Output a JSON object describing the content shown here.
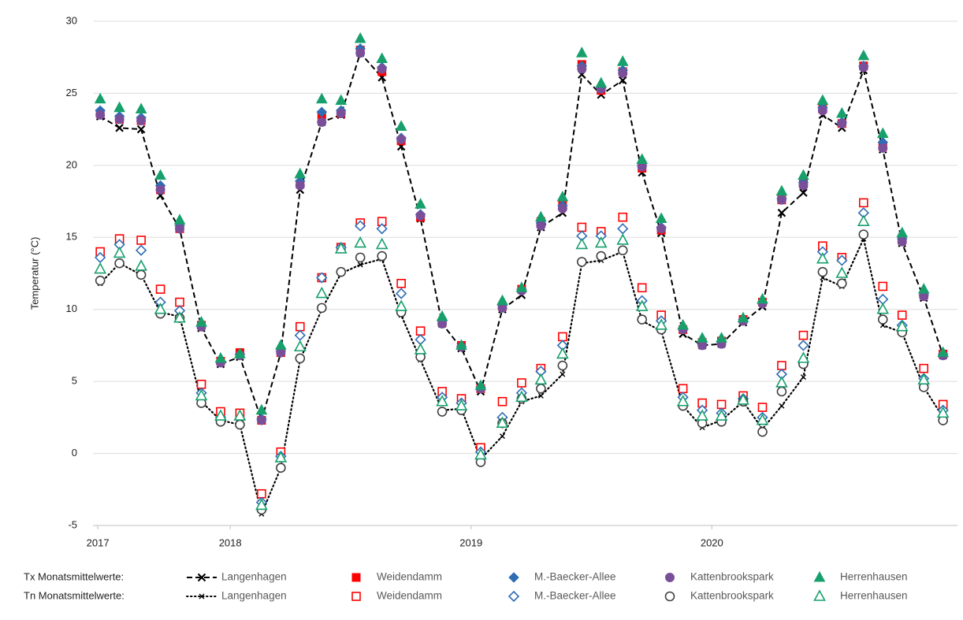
{
  "chart_data": {
    "type": "line",
    "y_label": "Temperatur (°C)",
    "xlim": [
      2017.43,
      2021.02
    ],
    "xticks": [
      {
        "value": 2017.45,
        "label": "2017"
      },
      2018,
      2019,
      2020
    ],
    "ylim": [
      -5,
      30
    ],
    "yticks": [
      -5,
      0,
      5,
      10,
      15,
      20,
      25,
      30
    ],
    "grid": true,
    "legend_titles": [
      "Tx Monatsmittelwerte:",
      "Tn Monatsmittelwerte:"
    ],
    "x": [
      2017.46,
      2017.54,
      2017.63,
      2017.71,
      2017.79,
      2017.88,
      2017.96,
      2018.04,
      2018.13,
      2018.21,
      2018.29,
      2018.38,
      2018.46,
      2018.54,
      2018.63,
      2018.71,
      2018.79,
      2018.88,
      2018.96,
      2019.04,
      2019.13,
      2019.21,
      2019.29,
      2019.38,
      2019.46,
      2019.54,
      2019.63,
      2019.71,
      2019.79,
      2019.88,
      2019.96,
      2020.04,
      2020.13,
      2020.21,
      2020.29,
      2020.38,
      2020.46,
      2020.54,
      2020.63,
      2020.71,
      2020.79,
      2020.88,
      2020.96
    ],
    "series": [
      {
        "name": "Langenhagen",
        "color": "#000000",
        "marker": "x",
        "filled": true,
        "line": "dashed",
        "values": [
          23.4,
          22.6,
          22.5,
          17.9,
          15.6,
          8.7,
          6.2,
          6.7,
          2.3,
          7.0,
          18.3,
          23.0,
          23.5,
          27.8,
          26.1,
          21.3,
          16.3,
          9.0,
          7.3,
          4.3,
          10.0,
          11.0,
          15.7,
          16.7,
          26.3,
          24.9,
          25.9,
          19.5,
          15.3,
          8.3,
          7.5,
          7.6,
          9.1,
          10.2,
          16.7,
          18.1,
          23.5,
          22.6,
          26.6,
          21.1,
          14.6,
          10.8,
          6.8
        ]
      },
      {
        "name": "Weidendamm",
        "color": "#ff0000",
        "marker": "square",
        "filled": true,
        "line": null,
        "values": [
          23.6,
          23.2,
          23.1,
          18.3,
          15.6,
          8.9,
          6.4,
          7.0,
          2.3,
          7.0,
          18.7,
          23.5,
          23.6,
          28.0,
          26.5,
          21.7,
          16.4,
          9.1,
          7.5,
          4.5,
          10.2,
          11.4,
          16.1,
          17.2,
          27.0,
          25.2,
          26.5,
          19.8,
          15.5,
          8.6,
          7.7,
          7.8,
          9.3,
          10.5,
          17.6,
          18.7,
          23.9,
          22.9,
          26.9,
          21.3,
          14.8,
          11.0,
          6.9
        ]
      },
      {
        "name": "M.-Baecker-Allee",
        "color": "#2e6db4",
        "marker": "diamond",
        "filled": true,
        "line": null,
        "values": [
          23.8,
          23.4,
          23.3,
          18.6,
          15.8,
          8.9,
          6.4,
          6.9,
          2.4,
          7.1,
          18.9,
          23.7,
          23.8,
          28.1,
          26.8,
          21.9,
          16.6,
          9.2,
          7.4,
          4.6,
          10.3,
          11.4,
          16.0,
          17.2,
          26.9,
          25.4,
          26.6,
          20.0,
          15.7,
          8.7,
          7.6,
          7.8,
          9.3,
          10.5,
          17.7,
          18.8,
          24.0,
          23.0,
          26.9,
          21.6,
          14.9,
          11.0,
          6.9
        ]
      },
      {
        "name": "Kattenbrookspark",
        "color": "#7a4f9a",
        "marker": "circle",
        "filled": true,
        "line": null,
        "values": [
          23.5,
          23.2,
          23.1,
          18.3,
          15.6,
          8.8,
          6.3,
          6.8,
          2.3,
          7.0,
          18.6,
          23.0,
          23.6,
          27.8,
          26.7,
          21.8,
          16.5,
          9.0,
          7.4,
          4.5,
          10.1,
          11.3,
          15.8,
          17.0,
          26.7,
          25.3,
          26.4,
          19.9,
          15.6,
          8.6,
          7.5,
          7.6,
          9.2,
          10.4,
          17.6,
          18.6,
          23.8,
          22.9,
          26.8,
          21.2,
          14.7,
          10.9,
          6.8
        ]
      },
      {
        "name": "Herrenhausen",
        "color": "#17a06c",
        "marker": "triangle",
        "filled": true,
        "line": null,
        "values": [
          24.6,
          24.0,
          23.9,
          19.3,
          16.2,
          9.1,
          6.6,
          6.9,
          3.0,
          7.5,
          19.4,
          24.6,
          24.5,
          28.8,
          27.4,
          22.7,
          17.3,
          9.5,
          7.5,
          4.7,
          10.6,
          11.5,
          16.4,
          17.8,
          27.8,
          25.7,
          27.2,
          20.4,
          16.3,
          8.9,
          8.0,
          8.0,
          9.4,
          10.7,
          18.2,
          19.3,
          24.5,
          23.6,
          27.6,
          22.2,
          15.3,
          11.4,
          7.0
        ]
      },
      {
        "name": "Langenhagen",
        "color": "#000000",
        "marker": "x",
        "filled": false,
        "line": "dotted",
        "values": [
          11.8,
          13.2,
          12.4,
          9.8,
          9.5,
          3.6,
          2.3,
          2.0,
          -4.2,
          -1.0,
          6.5,
          10.0,
          12.5,
          13.1,
          13.5,
          9.6,
          6.5,
          3.0,
          3.1,
          -0.4,
          1.2,
          3.6,
          4.0,
          5.5,
          13.2,
          13.4,
          14.0,
          9.2,
          8.5,
          3.3,
          1.8,
          2.3,
          3.6,
          1.7,
          3.3,
          5.3,
          12.2,
          11.6,
          14.9,
          8.9,
          8.4,
          4.6,
          2.5
        ]
      },
      {
        "name": "Weidendamm",
        "color": "#ff0000",
        "marker": "square",
        "filled": false,
        "line": null,
        "values": [
          14.0,
          14.9,
          14.8,
          11.4,
          10.5,
          4.8,
          2.9,
          2.8,
          -2.8,
          0.1,
          8.8,
          12.2,
          14.3,
          16.0,
          16.1,
          11.8,
          8.5,
          4.3,
          3.8,
          0.4,
          3.6,
          4.9,
          5.9,
          8.1,
          15.7,
          15.4,
          16.4,
          11.5,
          9.6,
          4.5,
          3.5,
          3.4,
          4.0,
          3.2,
          6.1,
          8.2,
          14.4,
          13.6,
          17.4,
          11.6,
          9.6,
          5.9,
          3.4
        ]
      },
      {
        "name": "M.-Baecker-Allee",
        "color": "#2e6db4",
        "marker": "diamond",
        "filled": false,
        "line": null,
        "values": [
          13.6,
          14.5,
          14.1,
          10.5,
          9.9,
          4.2,
          2.5,
          2.4,
          -3.4,
          -0.2,
          8.2,
          12.2,
          14.3,
          15.8,
          15.6,
          11.1,
          7.9,
          3.9,
          3.5,
          0.1,
          2.5,
          4.2,
          5.7,
          7.5,
          15.1,
          15.1,
          15.6,
          10.6,
          9.2,
          3.9,
          3.0,
          2.8,
          3.8,
          2.5,
          5.5,
          7.5,
          14.0,
          13.4,
          16.7,
          10.7,
          8.9,
          5.2,
          3.0
        ]
      },
      {
        "name": "Kattenbrookspark",
        "color": "#404040",
        "marker": "circle",
        "filled": false,
        "line": null,
        "values": [
          12.0,
          13.2,
          12.4,
          9.7,
          9.4,
          3.5,
          2.2,
          2.0,
          -3.9,
          -1.0,
          6.6,
          10.1,
          12.6,
          13.6,
          13.7,
          9.8,
          6.7,
          2.9,
          3.0,
          -0.6,
          2.1,
          3.8,
          4.5,
          6.1,
          13.3,
          13.7,
          14.1,
          9.3,
          8.6,
          3.3,
          2.1,
          2.2,
          3.6,
          1.5,
          4.3,
          6.2,
          12.6,
          11.8,
          15.2,
          9.3,
          8.4,
          4.6,
          2.3
        ]
      },
      {
        "name": "Herrenhausen",
        "color": "#17a06c",
        "marker": "triangle",
        "filled": false,
        "line": null,
        "values": [
          12.8,
          13.9,
          13.0,
          10.0,
          9.4,
          4.0,
          2.6,
          2.6,
          -3.6,
          -0.3,
          7.4,
          11.1,
          14.2,
          14.6,
          14.5,
          10.2,
          7.2,
          3.6,
          3.3,
          -0.1,
          2.1,
          3.9,
          5.1,
          6.9,
          14.5,
          14.6,
          14.8,
          10.2,
          8.9,
          3.6,
          2.6,
          2.6,
          3.7,
          2.3,
          4.9,
          6.6,
          13.5,
          12.5,
          16.1,
          10.0,
          8.8,
          5.1,
          2.8
        ]
      }
    ]
  }
}
